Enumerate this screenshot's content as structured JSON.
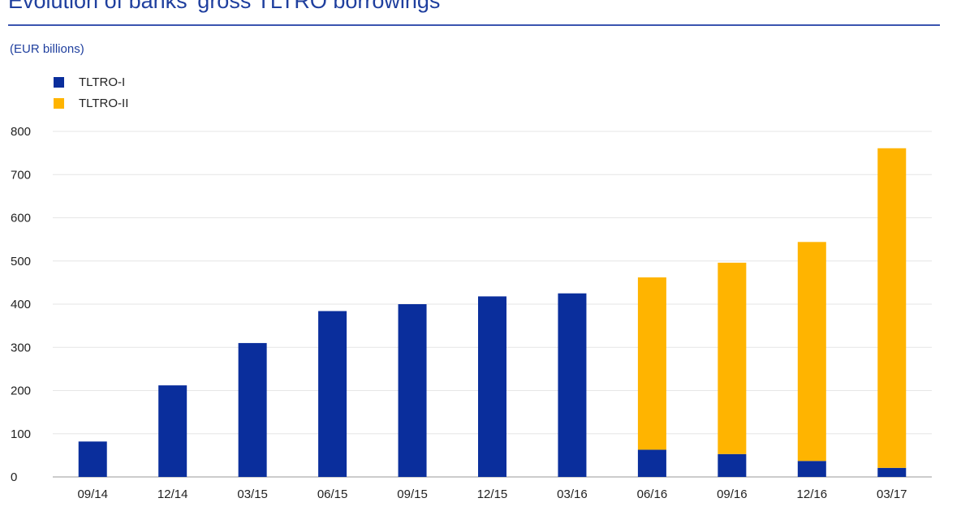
{
  "header": {
    "title": "Evolution of banks' gross TLTRO borrowings",
    "unit": "(EUR billions)"
  },
  "colors": {
    "tltro1": "#0a2e9c",
    "tltro2": "#ffb400",
    "grid": "#e6e6e6",
    "accent": "#1f3f9e"
  },
  "chart_data": {
    "type": "bar",
    "stacked": true,
    "title": "Evolution of banks' gross TLTRO borrowings",
    "ylabel": "(EUR billions)",
    "categories": [
      "09/14",
      "12/14",
      "03/15",
      "06/15",
      "09/15",
      "12/15",
      "03/16",
      "06/16",
      "09/16",
      "12/16",
      "03/17"
    ],
    "series": [
      {
        "name": "TLTRO-I",
        "values": [
          82,
          212,
          310,
          384,
          400,
          418,
          425,
          63,
          53,
          37,
          21
        ]
      },
      {
        "name": "TLTRO-II",
        "values": [
          0,
          0,
          0,
          0,
          0,
          0,
          0,
          399,
          443,
          507,
          740
        ]
      }
    ],
    "ylim": [
      0,
      800
    ],
    "yticks": [
      0,
      100,
      200,
      300,
      400,
      500,
      600,
      700,
      800
    ],
    "grid": true,
    "legend": "top-left"
  }
}
